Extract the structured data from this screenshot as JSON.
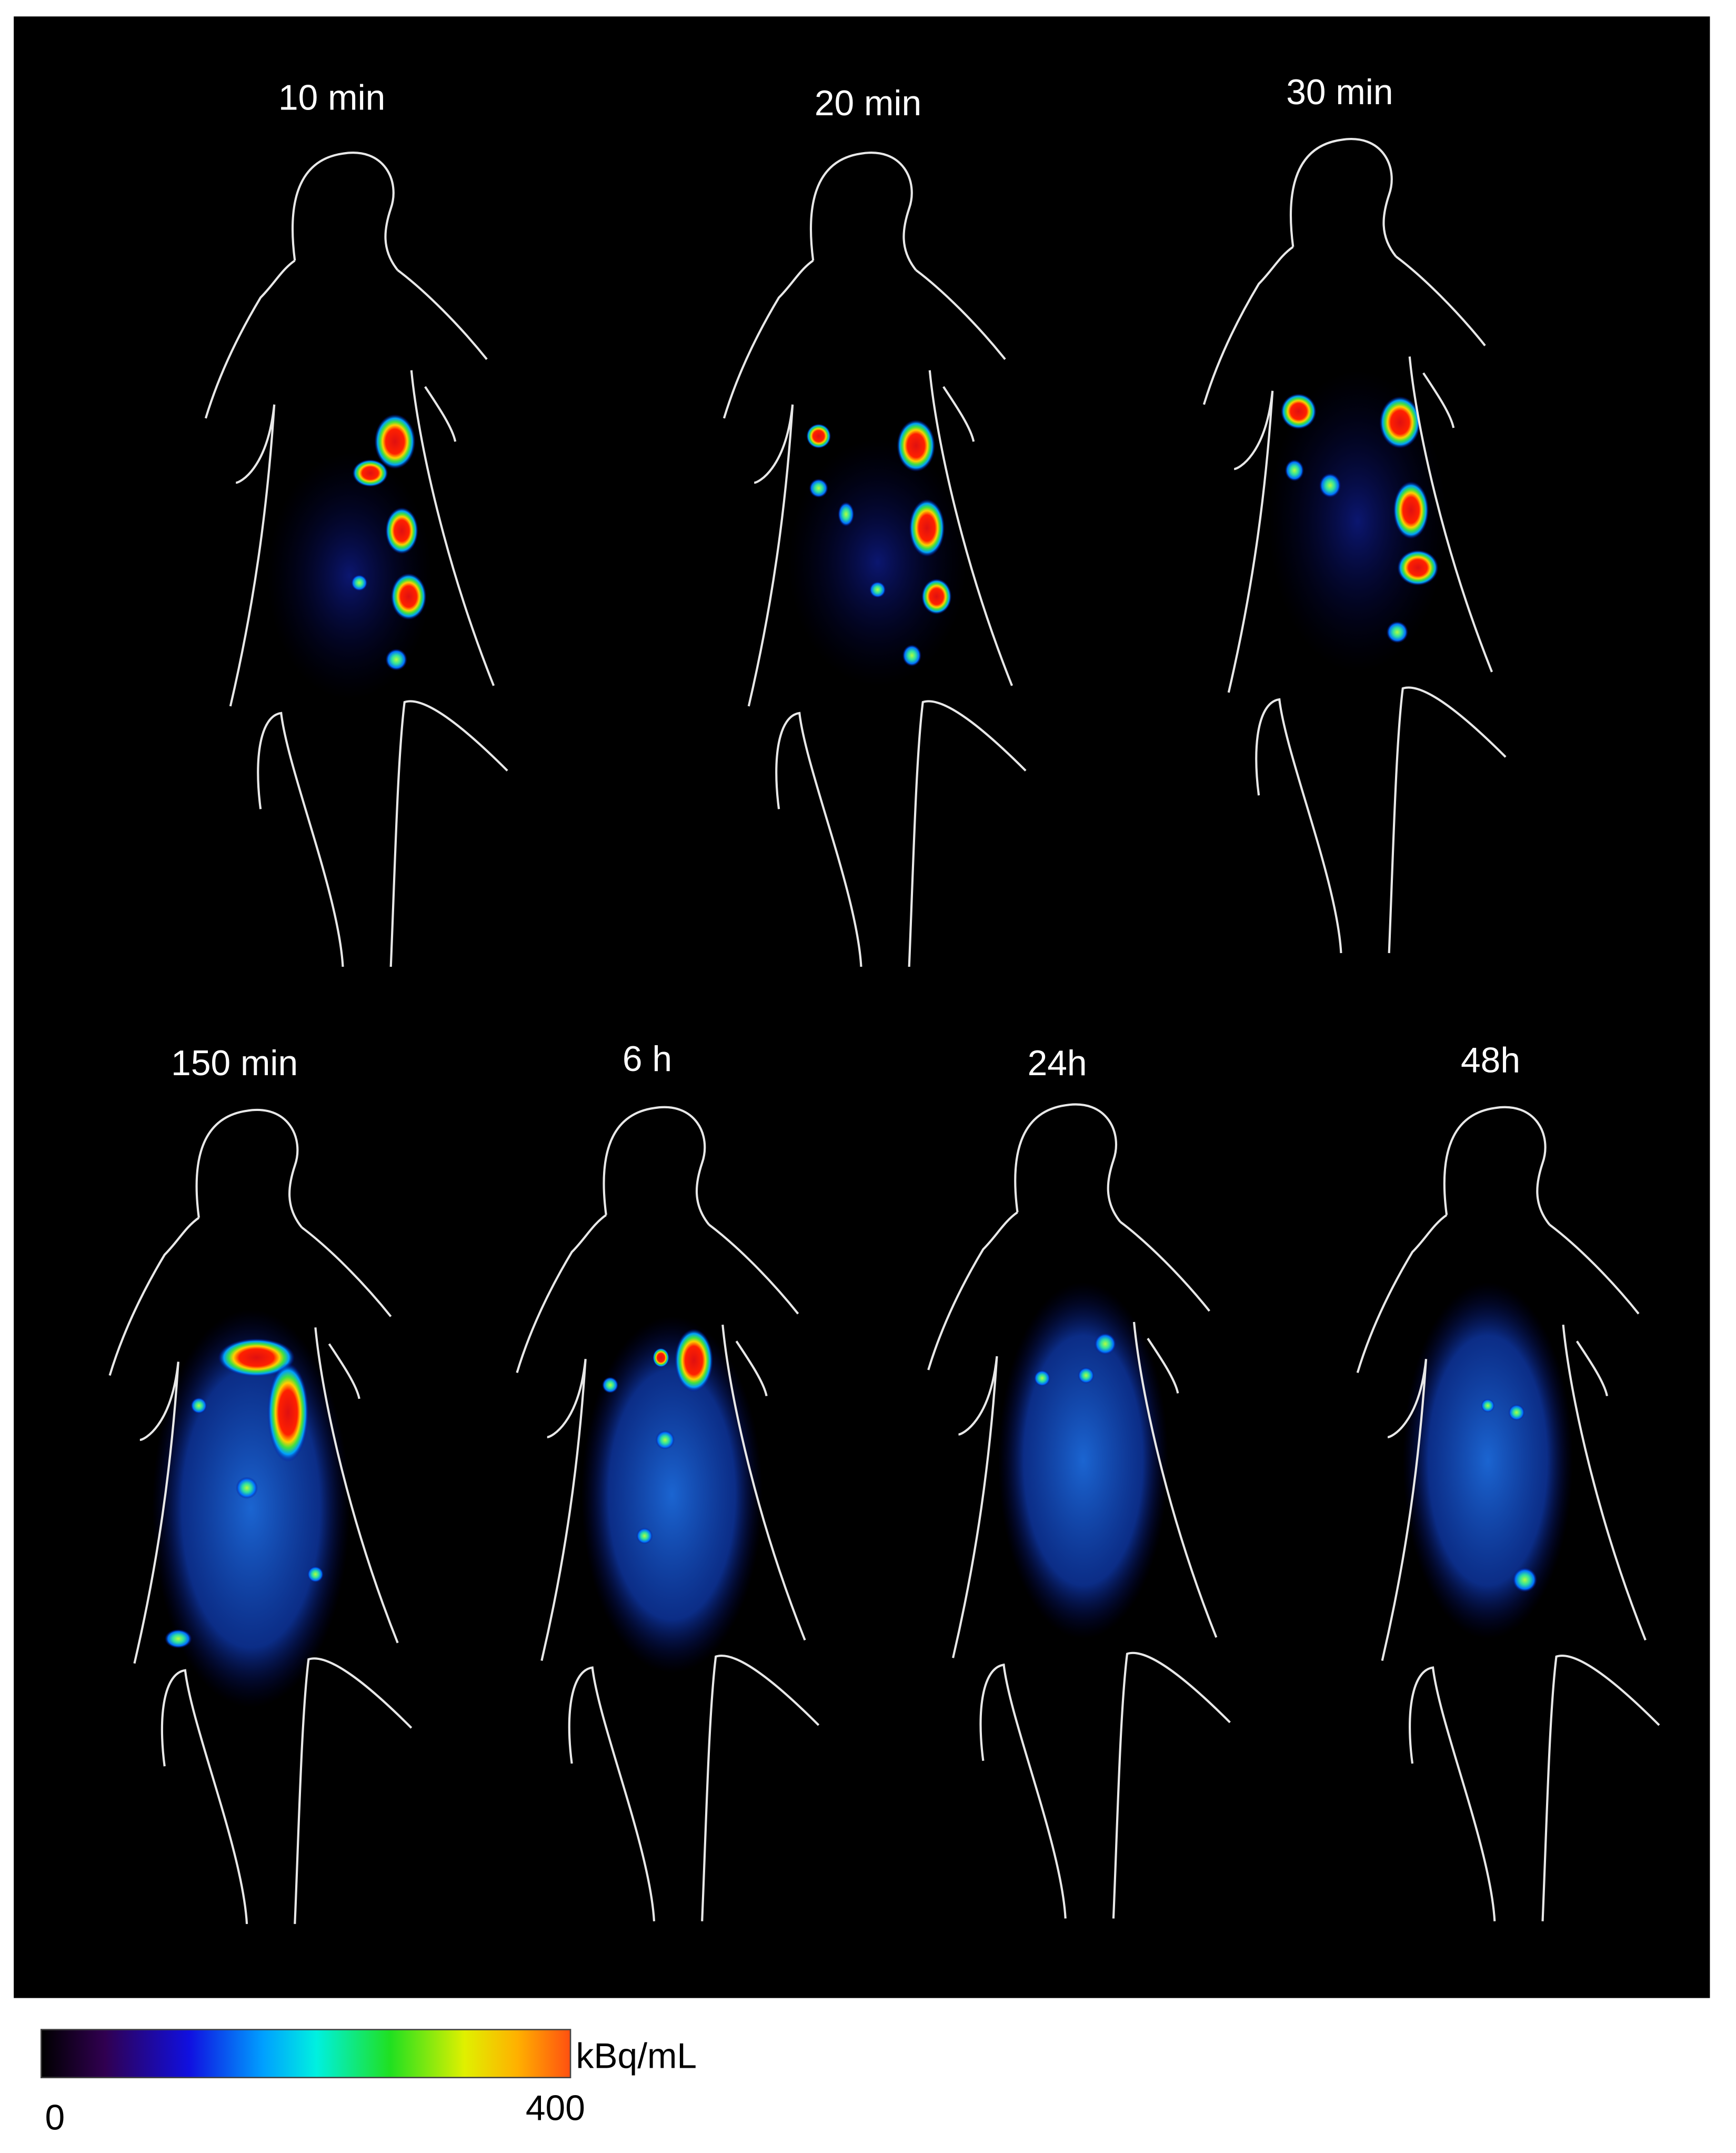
{
  "panels": [
    {
      "label": "10 min"
    },
    {
      "label": "20 min"
    },
    {
      "label": "30 min"
    },
    {
      "label": "150 min"
    },
    {
      "label": "6 h"
    },
    {
      "label": "24h"
    },
    {
      "label": "48h"
    }
  ],
  "colorbar": {
    "min": 0,
    "max": 400,
    "unit": "kBq/mL"
  }
}
